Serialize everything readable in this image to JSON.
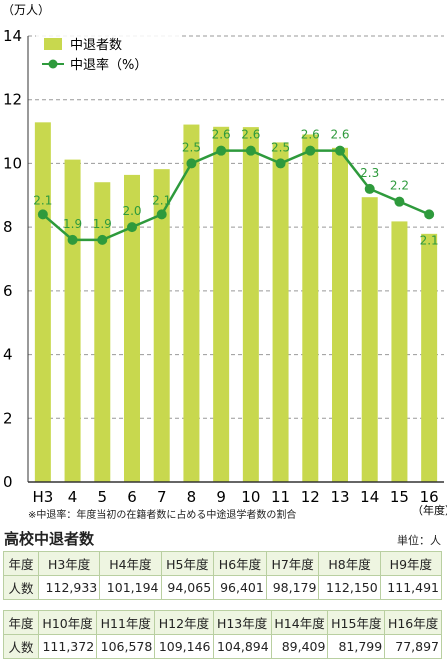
{
  "chart_data": {
    "type": "bar+line",
    "unit_label": "（万人）",
    "x_unit_label": "（年度）",
    "categories": [
      "H3",
      "4",
      "5",
      "6",
      "7",
      "8",
      "9",
      "10",
      "11",
      "12",
      "13",
      "14",
      "15",
      "16"
    ],
    "ylim": [
      0,
      14
    ],
    "yticks": [
      "0",
      "2",
      "4",
      "6",
      "8",
      "10",
      "12",
      "14"
    ],
    "series": [
      {
        "name": "中退者数",
        "values": [
          11.29,
          10.12,
          9.41,
          9.64,
          9.82,
          11.22,
          11.15,
          11.14,
          10.66,
          10.91,
          10.49,
          8.94,
          8.18,
          7.79
        ],
        "color": "#c8d84e"
      },
      {
        "name": "中退率（%）",
        "values": [
          2.1,
          1.9,
          1.9,
          2.0,
          2.1,
          2.5,
          2.6,
          2.6,
          2.5,
          2.6,
          2.6,
          2.3,
          2.2,
          2.1
        ],
        "labels": [
          "2.1",
          "1.9",
          "1.9",
          "2.0",
          "2.1",
          "2.5",
          "2.6",
          "2.6",
          "2.5",
          "2.6",
          "2.6",
          "2.3",
          "2.2",
          "2.1"
        ],
        "color": "#2e9a3c"
      }
    ]
  },
  "note": "※中退率：年度当初の在籍者数に占める中途退学者数の割合",
  "table": {
    "title": "高校中退者数",
    "unit": "単位：人",
    "row_header_year": "年度",
    "row_header_count": "人数",
    "part1": {
      "years": [
        "H3年度",
        "H4年度",
        "H5年度",
        "H6年度",
        "H7年度",
        "H8年度",
        "H9年度"
      ],
      "counts": [
        "112,933",
        "101,194",
        "94,065",
        "96,401",
        "98,179",
        "112,150",
        "111,491"
      ]
    },
    "part2": {
      "years": [
        "H10年度",
        "H11年度",
        "H12年度",
        "H13年度",
        "H14年度",
        "H15年度",
        "H16年度"
      ],
      "counts": [
        "111,372",
        "106,578",
        "109,146",
        "104,894",
        "89,409",
        "81,799",
        "77,897"
      ]
    }
  }
}
